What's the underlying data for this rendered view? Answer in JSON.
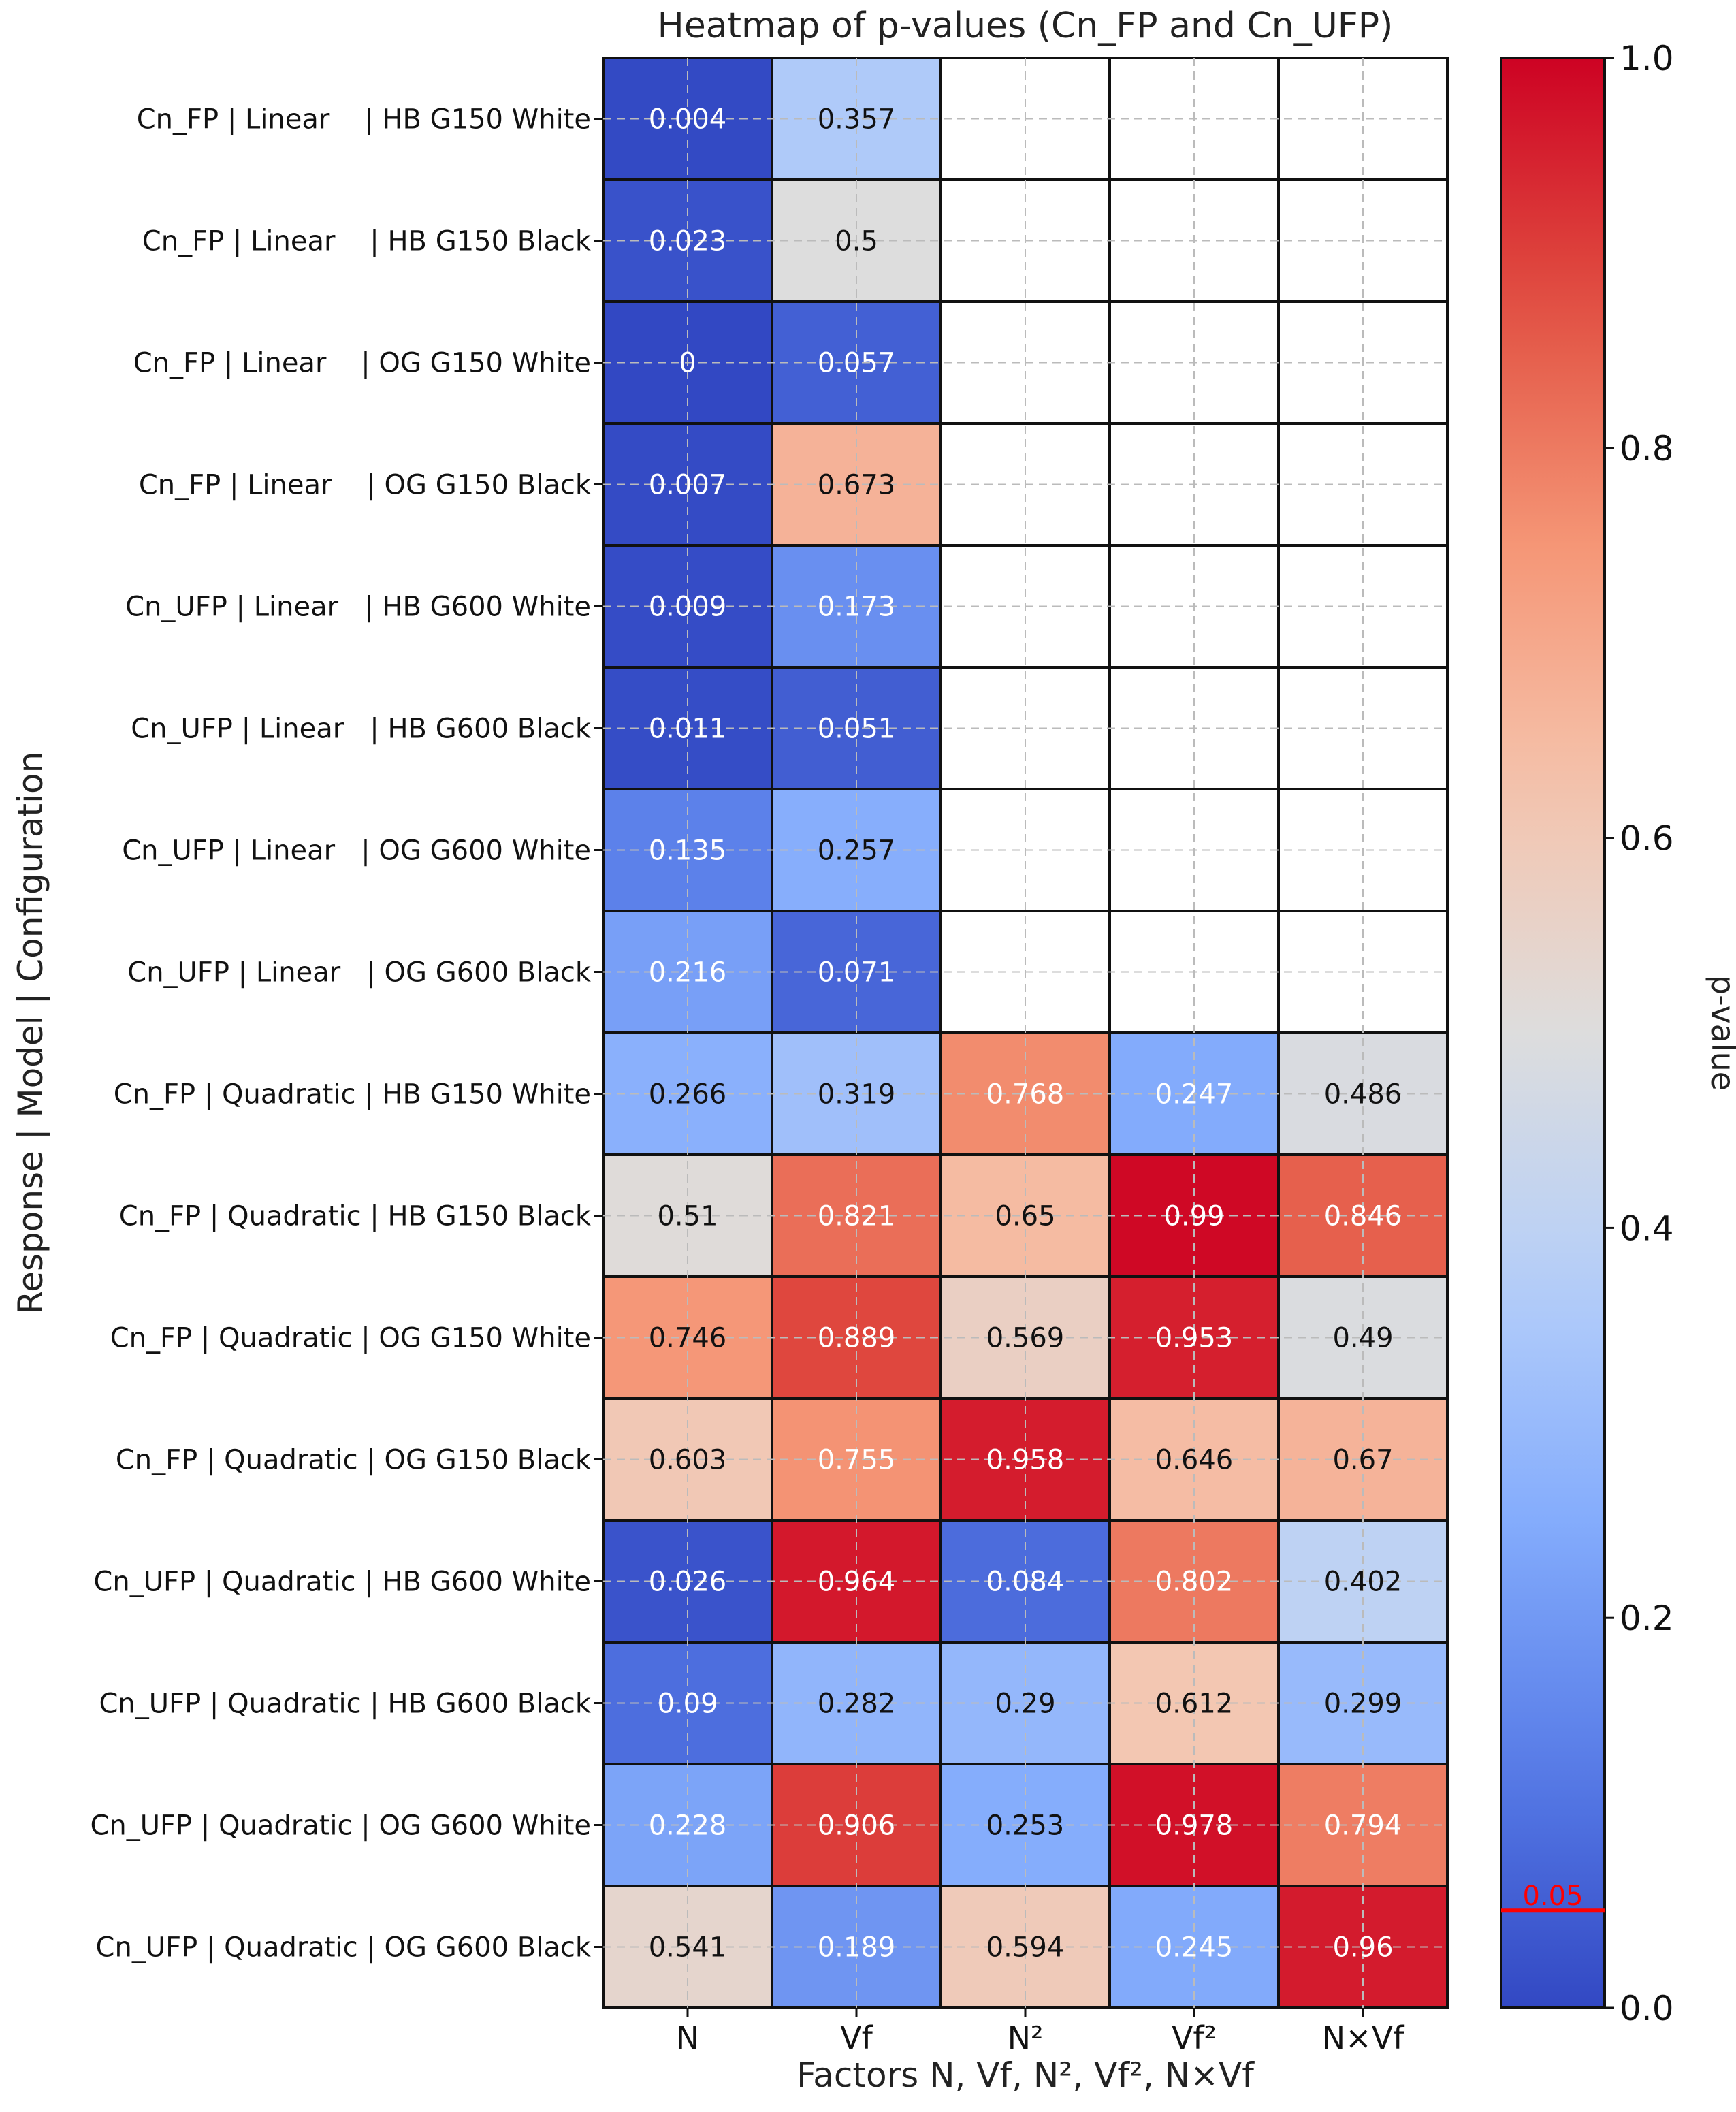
{
  "chart_data": {
    "type": "heatmap",
    "title": "Heatmap of p-values (Cn_FP and Cn_UFP)",
    "xlabel": "Factors N, Vf, N², Vf², N×Vf",
    "ylabel": "Response | Model | Configuration",
    "columns": [
      "N",
      "Vf",
      "N²",
      "Vf²",
      "N×Vf"
    ],
    "rows": [
      "Cn_FP | Linear    | HB G150 White",
      "Cn_FP | Linear    | HB G150 Black",
      "Cn_FP | Linear    | OG G150 White",
      "Cn_FP | Linear    | OG G150 Black",
      "Cn_UFP | Linear   | HB G600 White",
      "Cn_UFP | Linear   | HB G600 Black",
      "Cn_UFP | Linear   | OG G600 White",
      "Cn_UFP | Linear   | OG G600 Black",
      "Cn_FP | Quadratic | HB G150 White",
      "Cn_FP | Quadratic | HB G150 Black",
      "Cn_FP | Quadratic | OG G150 White",
      "Cn_FP | Quadratic | OG G150 Black",
      "Cn_UFP | Quadratic | HB G600 White",
      "Cn_UFP | Quadratic | HB G600 Black",
      "Cn_UFP | Quadratic | OG G600 White",
      "Cn_UFP | Quadratic | OG G600 Black"
    ],
    "values": [
      [
        "0.004",
        "0.357",
        null,
        null,
        null
      ],
      [
        "0.023",
        "0.5",
        null,
        null,
        null
      ],
      [
        "0",
        "0.057",
        null,
        null,
        null
      ],
      [
        "0.007",
        "0.673",
        null,
        null,
        null
      ],
      [
        "0.009",
        "0.173",
        null,
        null,
        null
      ],
      [
        "0.011",
        "0.051",
        null,
        null,
        null
      ],
      [
        "0.135",
        "0.257",
        null,
        null,
        null
      ],
      [
        "0.216",
        "0.071",
        null,
        null,
        null
      ],
      [
        "0.266",
        "0.319",
        "0.768",
        "0.247",
        "0.486"
      ],
      [
        "0.51",
        "0.821",
        "0.65",
        "0.99",
        "0.846"
      ],
      [
        "0.746",
        "0.889",
        "0.569",
        "0.953",
        "0.49"
      ],
      [
        "0.603",
        "0.755",
        "0.958",
        "0.646",
        "0.67"
      ],
      [
        "0.026",
        "0.964",
        "0.084",
        "0.802",
        "0.402"
      ],
      [
        "0.09",
        "0.282",
        "0.29",
        "0.612",
        "0.299"
      ],
      [
        "0.228",
        "0.906",
        "0.253",
        "0.978",
        "0.794"
      ],
      [
        "0.541",
        "0.189",
        "0.594",
        "0.245",
        "0.96"
      ]
    ],
    "colormap": "coolwarm",
    "vmin": 0.0,
    "vmax": 1.0,
    "colorbar": {
      "label": "p-value",
      "ticks": [
        "0.0",
        "0.2",
        "0.4",
        "0.6",
        "0.8",
        "1.0"
      ],
      "threshold": 0.05,
      "threshold_label": "0.05",
      "threshold_color": "#ff0000"
    },
    "grid": true
  }
}
